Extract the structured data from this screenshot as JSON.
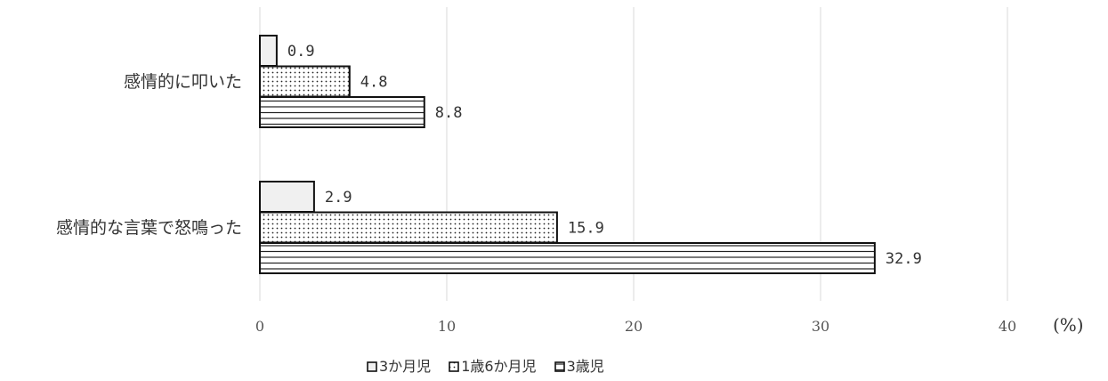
{
  "chart_data": {
    "type": "bar",
    "orientation": "horizontal",
    "categories": [
      "感情的に叩いた",
      "感情的な言葉で怒鳴った"
    ],
    "series": [
      {
        "name": "3か月児",
        "values": [
          0.9,
          2.9
        ],
        "pattern": "solid-light",
        "color": "#f0f0f0"
      },
      {
        "name": "1歳6か月児",
        "values": [
          4.8,
          15.9
        ],
        "pattern": "dots",
        "color": "#ffffff"
      },
      {
        "name": "3歳児",
        "values": [
          8.8,
          32.9
        ],
        "pattern": "horizontal-stripes",
        "color": "#ffffff"
      }
    ],
    "data_labels": [
      [
        "0.9",
        "2.9"
      ],
      [
        "4.8",
        "15.9"
      ],
      [
        "8.8",
        "32.9"
      ]
    ],
    "x_ticks": [
      "0",
      "10",
      "20",
      "30",
      "40"
    ],
    "x_unit": "(%)",
    "xlim": [
      0,
      40
    ],
    "grid": true,
    "legend_position": "bottom"
  }
}
